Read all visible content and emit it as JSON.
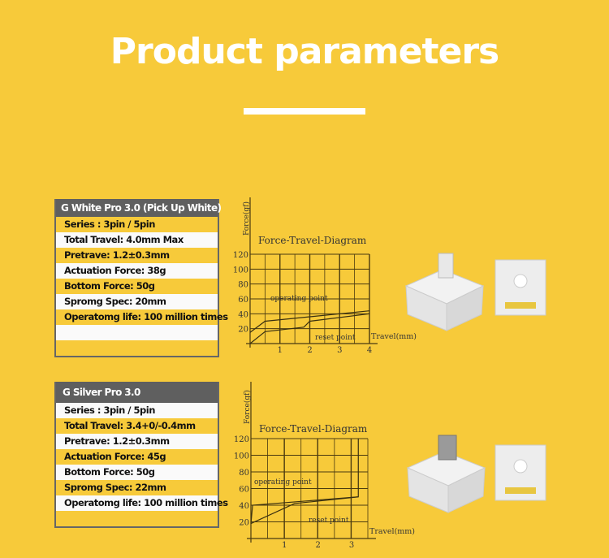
{
  "title": "Product parameters",
  "products": [
    {
      "name": "G White Pro 3.0 (Pick Up White)",
      "specs": [
        "Series : 3pin / 5pin",
        "Total Travel: 4.0mm Max",
        "Pretrave: 1.2±0.3mm",
        "Actuation Force: 38g",
        "Bottom Force: 50g",
        "Spromg Spec: 20mm",
        "Operatomg life: 100 million times"
      ],
      "stem_color": "#e8e8e8"
    },
    {
      "name": "G Silver Pro 3.0",
      "specs": [
        "Series : 3pin / 5pin",
        "Total Travel: 3.4+0/-0.4mm",
        "Pretrave: 1.2±0.3mm",
        "Actuation Force: 45g",
        "Bottom Force: 50g",
        "Spromg Spec: 22mm",
        "Operatomg life: 100 million times"
      ],
      "stem_color": "#9a9a9a"
    }
  ],
  "chart_data": [
    {
      "type": "line",
      "title": "Force-Travel-Diagram",
      "ylabel": "Force(gf)",
      "xlabel": "Travel(mm)",
      "xlim": [
        0,
        4
      ],
      "ylim": [
        0,
        120
      ],
      "xticks": [
        "1",
        "2",
        "3",
        "4"
      ],
      "yticks": [
        "20",
        "40",
        "60",
        "80",
        "100",
        "120"
      ],
      "grid": true,
      "annotations": [
        "operating point",
        "reset point"
      ],
      "series": [
        {
          "x": [
            0,
            0.5,
            2,
            4
          ],
          "y": [
            15,
            30,
            36,
            44
          ]
        },
        {
          "x": [
            0,
            0.5,
            1.8,
            2,
            4
          ],
          "y": [
            0,
            16,
            22,
            30,
            40
          ]
        }
      ]
    },
    {
      "type": "line",
      "title": "Force-Travel-Diagram",
      "ylabel": "Force(gf)",
      "xlabel": "Travel(mm)",
      "xlim": [
        0,
        3.5
      ],
      "ylim": [
        0,
        120
      ],
      "xticks": [
        "1",
        "2",
        "3"
      ],
      "yticks": [
        "20",
        "40",
        "60",
        "80",
        "100",
        "120"
      ],
      "grid": true,
      "annotations": [
        "operating point",
        "reset point"
      ],
      "series": [
        {
          "x": [
            0,
            0.05,
            3.2,
            3.2
          ],
          "y": [
            18,
            40,
            50,
            120
          ]
        },
        {
          "x": [
            0,
            1.3,
            3.2
          ],
          "y": [
            18,
            42,
            50
          ]
        }
      ]
    }
  ]
}
